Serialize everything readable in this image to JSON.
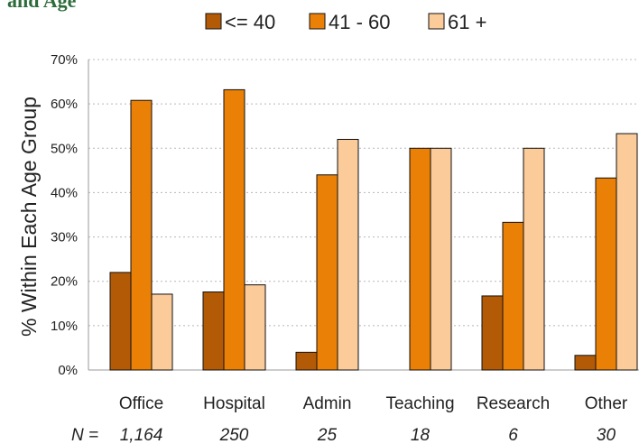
{
  "chart_data": {
    "type": "bar",
    "title": "and Age",
    "ylabel": "% Within Each Age Group",
    "ylim": [
      0,
      70
    ],
    "yticks": [
      "0%",
      "10%",
      "20%",
      "30%",
      "40%",
      "50%",
      "60%",
      "70%"
    ],
    "grid": true,
    "legend_position": "top",
    "categories": [
      "Office",
      "Hospital",
      "Admin",
      "Teaching",
      "Research",
      "Other"
    ],
    "n_label": "N =",
    "n_values": [
      "1,164",
      "250",
      "25",
      "18",
      "6",
      "30"
    ],
    "series": [
      {
        "name": "<= 40",
        "color": "#b35a06",
        "values": [
          22,
          17.6,
          4,
          0,
          16.7,
          3.3
        ]
      },
      {
        "name": "41 - 60",
        "color": "#ea8005",
        "values": [
          60.8,
          63.2,
          44,
          50,
          33.3,
          43.3
        ]
      },
      {
        "name": "61 +",
        "color": "#fbcb9a",
        "values": [
          17.1,
          19.2,
          52,
          50,
          50,
          53.3
        ]
      }
    ]
  }
}
